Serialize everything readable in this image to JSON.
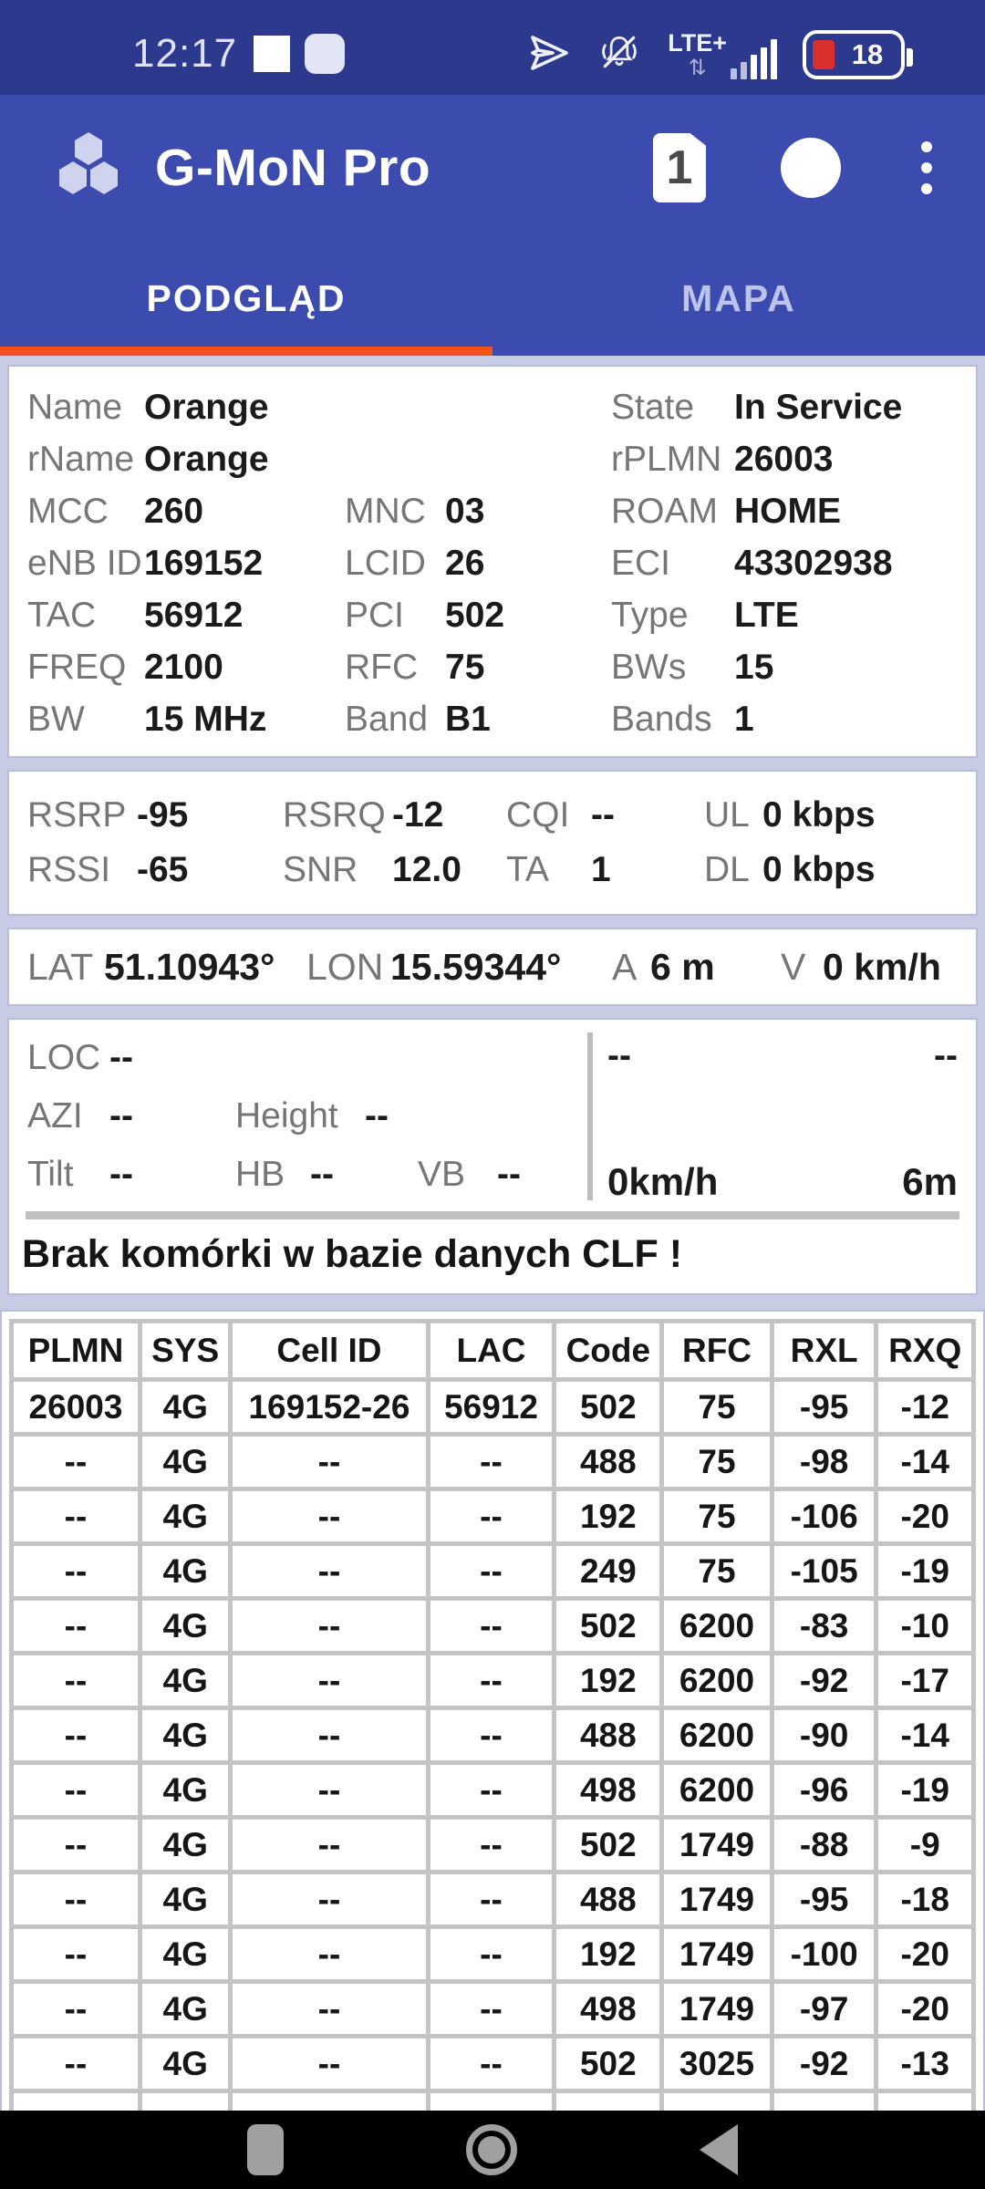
{
  "colors": {
    "status_bar_blue": "#2c398c",
    "app_bar_blue": "#3b4bae",
    "tab_underline_orange": "#f4511e",
    "background_lavender": "#c8cbe4",
    "battery_red": "#d93030",
    "grid_gray": "#c4c4c4"
  },
  "status_bar": {
    "time": "12:17",
    "network": "LTE+",
    "battery_percent": "18"
  },
  "header": {
    "title": "G-MoN Pro",
    "sim_badge": "1"
  },
  "tabs": {
    "overview": "PODGLĄD",
    "map": "MAPA"
  },
  "cell_info": {
    "rows": [
      [
        {
          "l": "Name",
          "v": "Orange"
        },
        {
          "l": "",
          "v": ""
        },
        {
          "l": "State",
          "v": "In Service"
        }
      ],
      [
        {
          "l": "rName",
          "v": "Orange"
        },
        {
          "l": "",
          "v": ""
        },
        {
          "l": "rPLMN",
          "v": "26003"
        }
      ],
      [
        {
          "l": "MCC",
          "v": "260"
        },
        {
          "l": "MNC",
          "v": "03"
        },
        {
          "l": "ROAM",
          "v": "HOME"
        }
      ],
      [
        {
          "l": "eNB ID",
          "v": "169152"
        },
        {
          "l": "LCID",
          "v": "26"
        },
        {
          "l": "ECI",
          "v": "43302938"
        }
      ],
      [
        {
          "l": "TAC",
          "v": "56912"
        },
        {
          "l": "PCI",
          "v": "502"
        },
        {
          "l": "Type",
          "v": "LTE"
        }
      ],
      [
        {
          "l": "FREQ",
          "v": "2100"
        },
        {
          "l": "RFC",
          "v": "75"
        },
        {
          "l": "BWs",
          "v": "15"
        }
      ],
      [
        {
          "l": "BW",
          "v": "15 MHz"
        },
        {
          "l": "Band",
          "v": "B1"
        },
        {
          "l": "Bands",
          "v": "1"
        }
      ]
    ]
  },
  "signal": {
    "rows": [
      [
        {
          "l": "RSRP",
          "v": "-95"
        },
        {
          "l": "RSRQ",
          "v": "-12"
        },
        {
          "l": "CQI",
          "v": "--"
        },
        {
          "l": "UL",
          "v": "0 kbps"
        }
      ],
      [
        {
          "l": "RSSI",
          "v": "-65"
        },
        {
          "l": "SNR",
          "v": "12.0"
        },
        {
          "l": "TA",
          "v": "1"
        },
        {
          "l": "DL",
          "v": "0 kbps"
        }
      ]
    ]
  },
  "gps": {
    "pairs": [
      {
        "l": "LAT",
        "v": "51.10943°"
      },
      {
        "l": "LON",
        "v": "15.59344°"
      },
      {
        "l": "A",
        "v": "6 m"
      },
      {
        "l": "V",
        "v": "0 km/h"
      }
    ]
  },
  "antenna": {
    "rows": [
      [
        {
          "l": "LOC",
          "v": "--"
        }
      ],
      [
        {
          "l": "AZI",
          "v": "--"
        },
        {
          "l": "Height",
          "v": "--"
        }
      ],
      [
        {
          "l": "Tilt",
          "v": "--"
        },
        {
          "l": "HB",
          "v": "--"
        },
        {
          "l": "VB",
          "v": "--"
        }
      ]
    ],
    "meter": {
      "top_left": "--",
      "top_right": "--",
      "bottom_left": "0km/h",
      "bottom_right": "6m"
    }
  },
  "clf_message": "Brak komórki w bazie danych CLF !",
  "table": {
    "columns": [
      "PLMN",
      "SYS",
      "Cell ID",
      "LAC",
      "Code",
      "RFC",
      "RXL",
      "RXQ"
    ],
    "col_widths_pct": [
      13.4,
      9.3,
      20.8,
      13.2,
      11.1,
      11.4,
      10.8,
      10.0
    ],
    "rows": [
      [
        "26003",
        "4G",
        "169152-26",
        "56912",
        "502",
        "75",
        "-95",
        "-12"
      ],
      [
        "--",
        "4G",
        "--",
        "--",
        "488",
        "75",
        "-98",
        "-14"
      ],
      [
        "--",
        "4G",
        "--",
        "--",
        "192",
        "75",
        "-106",
        "-20"
      ],
      [
        "--",
        "4G",
        "--",
        "--",
        "249",
        "75",
        "-105",
        "-19"
      ],
      [
        "--",
        "4G",
        "--",
        "--",
        "502",
        "6200",
        "-83",
        "-10"
      ],
      [
        "--",
        "4G",
        "--",
        "--",
        "192",
        "6200",
        "-92",
        "-17"
      ],
      [
        "--",
        "4G",
        "--",
        "--",
        "488",
        "6200",
        "-90",
        "-14"
      ],
      [
        "--",
        "4G",
        "--",
        "--",
        "498",
        "6200",
        "-96",
        "-19"
      ],
      [
        "--",
        "4G",
        "--",
        "--",
        "502",
        "1749",
        "-88",
        "-9"
      ],
      [
        "--",
        "4G",
        "--",
        "--",
        "488",
        "1749",
        "-95",
        "-18"
      ],
      [
        "--",
        "4G",
        "--",
        "--",
        "192",
        "1749",
        "-100",
        "-20"
      ],
      [
        "--",
        "4G",
        "--",
        "--",
        "498",
        "1749",
        "-97",
        "-20"
      ],
      [
        "--",
        "4G",
        "--",
        "--",
        "502",
        "3025",
        "-92",
        "-13"
      ]
    ],
    "partial_rows": 2
  }
}
